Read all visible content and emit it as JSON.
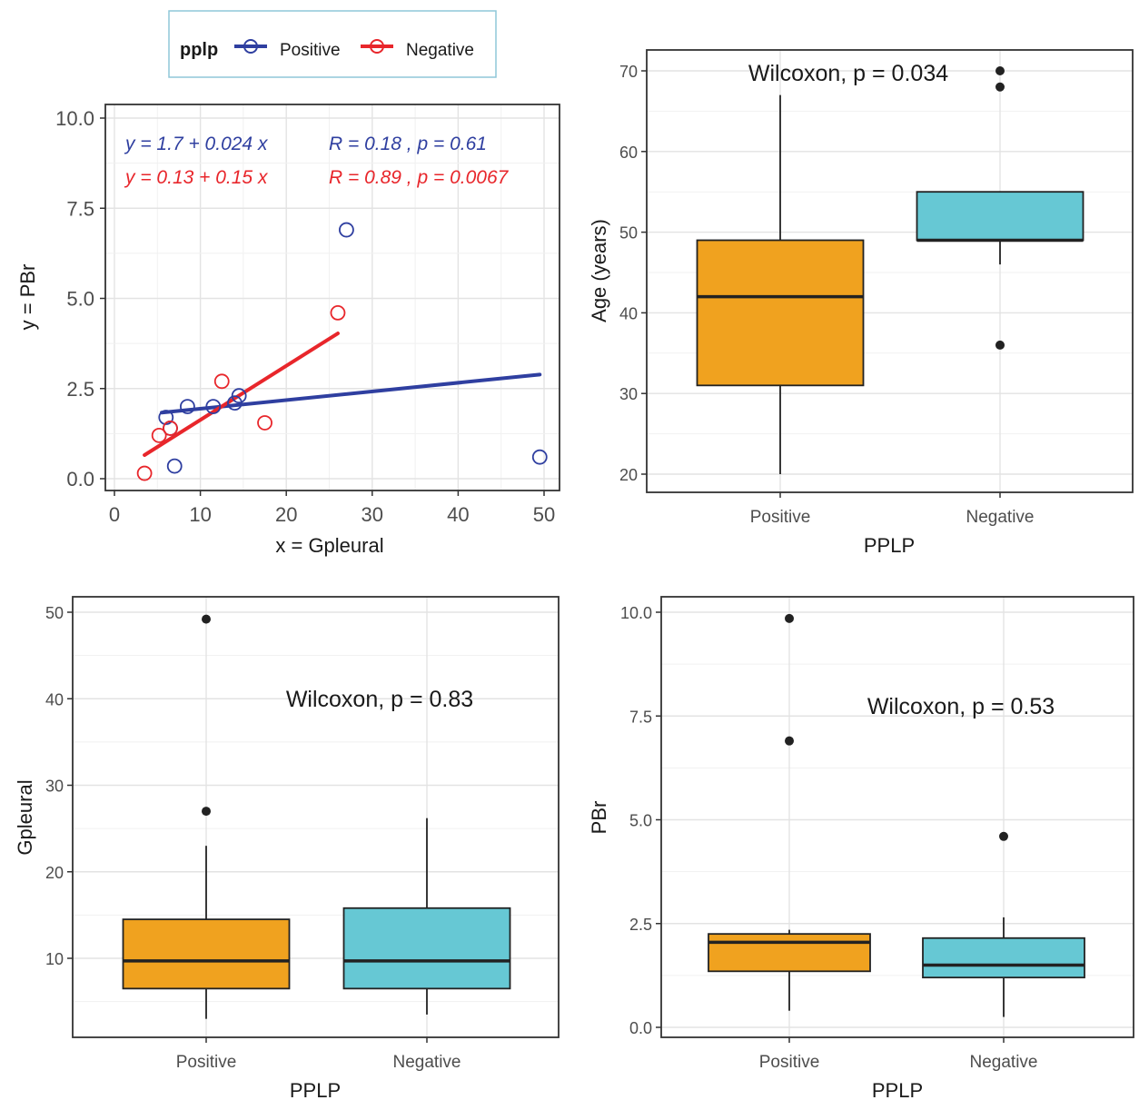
{
  "colors": {
    "positive_line": "#2f3fa0",
    "negative_line": "#e8262b",
    "positive_box": "#f0a21f",
    "negative_box": "#66c8d4",
    "outlier": "#222222"
  },
  "legend": {
    "title": "pplp",
    "items": [
      "Positive",
      "Negative"
    ]
  },
  "chart_data": [
    {
      "type": "scatter",
      "xlabel": "x = Gpleural",
      "ylabel": "y = PBr",
      "xlim": [
        0,
        50
      ],
      "ylim": [
        0,
        10
      ],
      "xticks": [
        "0",
        "10",
        "20",
        "30",
        "40",
        "50"
      ],
      "yticks": [
        "0.0",
        "2.5",
        "5.0",
        "7.5",
        "10.0"
      ],
      "grid": true,
      "series": [
        {
          "name": "Positive",
          "color": "#2f3fa0",
          "points": [
            [
              6.5,
              1.4
            ],
            [
              8.5,
              2.0
            ],
            [
              11.5,
              2.0
            ],
            [
              14.0,
              2.1
            ],
            [
              14.5,
              2.3
            ],
            [
              7.0,
              0.35
            ],
            [
              27.0,
              6.9
            ],
            [
              49.5,
              0.6
            ],
            [
              6.0,
              1.7
            ]
          ],
          "fit": {
            "intercept": 1.7,
            "slope": 0.024,
            "x_range": [
              5.5,
              49.5
            ]
          },
          "equation": "y = 1.7 + 0.024 x",
          "stat": "R = 0.18 , p = 0.61"
        },
        {
          "name": "Negative",
          "color": "#e8262b",
          "points": [
            [
              3.5,
              0.15
            ],
            [
              5.2,
              1.2
            ],
            [
              6.5,
              1.4
            ],
            [
              12.5,
              2.7
            ],
            [
              17.5,
              1.55
            ],
            [
              26.0,
              4.6
            ]
          ],
          "fit": {
            "intercept": 0.13,
            "slope": 0.15,
            "x_range": [
              3.5,
              26.0
            ]
          },
          "equation": "y = 0.13 + 0.15 x",
          "stat": "R = 0.89 , p = 0.0067"
        }
      ]
    },
    {
      "type": "box",
      "xlabel": "PPLP",
      "ylabel": "Age (years)",
      "ylim": [
        18,
        72
      ],
      "yticks": [
        20,
        30,
        40,
        50,
        60,
        70
      ],
      "categories": [
        "Positive",
        "Negative"
      ],
      "annotation": "Wilcoxon, p = 0.034",
      "boxes": [
        {
          "name": "Positive",
          "min": 20,
          "q1": 31,
          "median": 42,
          "q3": 49,
          "max": 67,
          "outliers": []
        },
        {
          "name": "Negative",
          "min": 46,
          "q1": 49,
          "median": 49,
          "q3": 55,
          "max": 55,
          "outliers": [
            36,
            68,
            70
          ]
        }
      ]
    },
    {
      "type": "box",
      "xlabel": "PPLP",
      "ylabel": "Gpleural",
      "ylim": [
        1,
        52
      ],
      "yticks": [
        10,
        20,
        30,
        40,
        50
      ],
      "categories": [
        "Positive",
        "Negative"
      ],
      "annotation": "Wilcoxon, p = 0.83",
      "boxes": [
        {
          "name": "Positive",
          "min": 3,
          "q1": 6.5,
          "median": 9.7,
          "q3": 14.5,
          "max": 23,
          "outliers": [
            27,
            49.2
          ]
        },
        {
          "name": "Negative",
          "min": 3.5,
          "q1": 6.5,
          "median": 9.7,
          "q3": 15.8,
          "max": 26.2,
          "outliers": []
        }
      ]
    },
    {
      "type": "box",
      "xlabel": "PPLP",
      "ylabel": "PBr",
      "ylim": [
        -0.35,
        10.35
      ],
      "yticks": [
        "0.0",
        "2.5",
        "5.0",
        "7.5",
        "10.0"
      ],
      "categories": [
        "Positive",
        "Negative"
      ],
      "annotation": "Wilcoxon, p = 0.53",
      "boxes": [
        {
          "name": "Positive",
          "min": 0.4,
          "q1": 1.35,
          "median": 2.05,
          "q3": 2.25,
          "max": 2.35,
          "outliers": [
            6.9,
            9.85
          ]
        },
        {
          "name": "Negative",
          "min": 0.25,
          "q1": 1.2,
          "median": 1.5,
          "q3": 2.15,
          "max": 2.65,
          "outliers": [
            4.6
          ]
        }
      ]
    }
  ]
}
